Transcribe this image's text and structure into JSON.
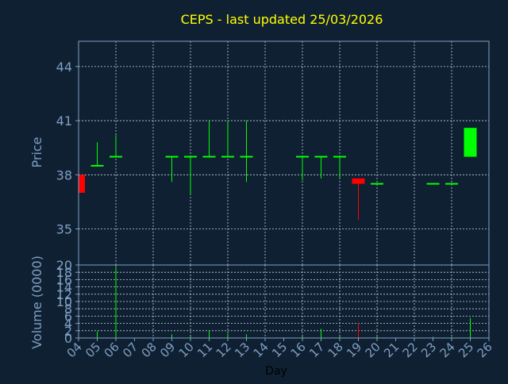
{
  "chart_data": {
    "type": "candlestick",
    "title": "CEPS - last updated 25/03/2026",
    "xlabel": "Day",
    "price_panel": {
      "ylabel": "Price",
      "ylim": [
        33,
        45.4
      ],
      "yticks": [
        "35",
        "38",
        "41",
        "44"
      ],
      "ytick_values": [
        35,
        38,
        41,
        44
      ]
    },
    "volume_panel": {
      "ylabel": "Volume (0000)",
      "ylim": [
        0,
        20
      ],
      "yticks": [
        "0",
        "2",
        "4",
        "6",
        "8",
        "10",
        "12",
        "14",
        "16",
        "18",
        "20"
      ],
      "ytick_values": [
        0,
        2,
        4,
        6,
        8,
        10,
        12,
        14,
        16,
        18,
        20
      ]
    },
    "days": [
      "04",
      "05",
      "06",
      "07",
      "08",
      "09",
      "10",
      "11",
      "12",
      "13",
      "14",
      "15",
      "16",
      "17",
      "18",
      "19",
      "20",
      "21",
      "22",
      "23",
      "24",
      "25",
      "26"
    ],
    "candles": [
      {
        "day": "04",
        "open": 38.0,
        "high": 38.0,
        "low": 37.0,
        "close": 37.0,
        "volume": 0.5
      },
      {
        "day": "05",
        "open": 38.5,
        "high": 39.8,
        "low": 38.5,
        "close": 38.5,
        "volume": 1.8
      },
      {
        "day": "06",
        "open": 39.0,
        "high": 40.2,
        "low": 39.0,
        "close": 39.0,
        "volume": 19.5
      },
      {
        "day": "09",
        "open": 39.0,
        "high": 39.0,
        "low": 37.6,
        "close": 39.0,
        "volume": 1.0
      },
      {
        "day": "10",
        "open": 39.0,
        "high": 39.0,
        "low": 36.9,
        "close": 39.0,
        "volume": 0.5
      },
      {
        "day": "11",
        "open": 39.0,
        "high": 41.0,
        "low": 39.0,
        "close": 39.0,
        "volume": 2.0
      },
      {
        "day": "12",
        "open": 39.0,
        "high": 41.0,
        "low": 39.0,
        "close": 39.0,
        "volume": 1.2
      },
      {
        "day": "13",
        "open": 39.0,
        "high": 41.0,
        "low": 37.6,
        "close": 39.0,
        "volume": 1.0
      },
      {
        "day": "16",
        "open": 39.0,
        "high": 39.0,
        "low": 37.7,
        "close": 39.0,
        "volume": 0.5
      },
      {
        "day": "17",
        "open": 39.0,
        "high": 39.0,
        "low": 37.8,
        "close": 39.0,
        "volume": 2.5
      },
      {
        "day": "18",
        "open": 39.0,
        "high": 39.0,
        "low": 37.8,
        "close": 39.0,
        "volume": 0.5
      },
      {
        "day": "19",
        "open": 37.8,
        "high": 37.8,
        "low": 35.5,
        "close": 37.5,
        "volume": 4.0
      },
      {
        "day": "20",
        "open": 37.5,
        "high": 37.5,
        "low": 37.5,
        "close": 37.5,
        "volume": 0.5
      },
      {
        "day": "23",
        "open": 37.5,
        "high": 37.5,
        "low": 37.5,
        "close": 37.5,
        "volume": 0.3
      },
      {
        "day": "24",
        "open": 37.5,
        "high": 37.5,
        "low": 37.5,
        "close": 37.5,
        "volume": 0.3
      },
      {
        "day": "25",
        "open": 39.0,
        "high": 40.6,
        "low": 39.0,
        "close": 40.6,
        "volume": 5.5
      }
    ],
    "grid": true,
    "colors": {
      "background": "#0f2033",
      "title": "#ffff00",
      "axis_text": "#7f9fc0",
      "axis_line": "#7f9fc0",
      "grid": "#c8d0dc",
      "up": "#00ff00",
      "down": "#ff0000",
      "xlabel": "#000000"
    }
  }
}
